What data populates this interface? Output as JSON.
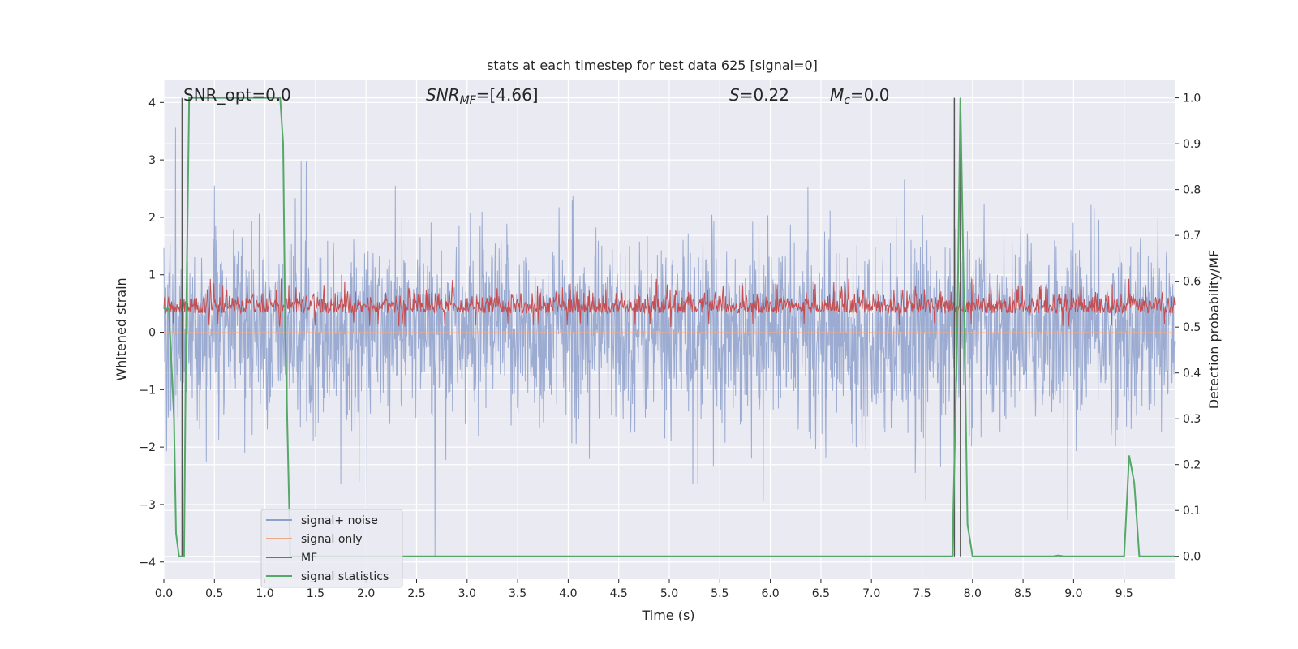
{
  "chart_data": {
    "type": "line",
    "title": "stats at each timestep for test data 625 [signal=0]",
    "xlabel": "Time (s)",
    "ylabel": "Whitened strain",
    "ylabel_right": "Detection probability/MF",
    "xlim": [
      0.0,
      10.0
    ],
    "ylim": [
      -4.3,
      4.4
    ],
    "ylim_right": [
      -0.05,
      1.04
    ],
    "x_ticks": [
      0.0,
      0.5,
      1.0,
      1.5,
      2.0,
      2.5,
      3.0,
      3.5,
      4.0,
      4.5,
      5.0,
      5.5,
      6.0,
      6.5,
      7.0,
      7.5,
      8.0,
      8.5,
      9.0,
      9.5
    ],
    "x_tick_labels": [
      "0.0",
      "0.5",
      "1.0",
      "1.5",
      "2.0",
      "2.5",
      "3.0",
      "3.5",
      "4.0",
      "4.5",
      "5.0",
      "5.5",
      "6.0",
      "6.5",
      "7.0",
      "7.5",
      "8.0",
      "8.5",
      "9.0",
      "9.5"
    ],
    "y_ticks": [
      -4,
      -3,
      -2,
      -1,
      0,
      1,
      2,
      3,
      4
    ],
    "y_tick_labels": [
      "−4",
      "−3",
      "−2",
      "−1",
      "0",
      "1",
      "2",
      "3",
      "4"
    ],
    "y_right_ticks": [
      0.0,
      0.1,
      0.2,
      0.3,
      0.4,
      0.5,
      0.6,
      0.7,
      0.8,
      0.9,
      1.0
    ],
    "y_right_tick_labels": [
      "0.0",
      "0.1",
      "0.2",
      "0.3",
      "0.4",
      "0.5",
      "0.6",
      "0.7",
      "0.8",
      "0.9",
      "1.0"
    ],
    "grid": true,
    "legend_position": "lower-left",
    "annotations": {
      "snr_opt": "SNR_opt=0.0",
      "snr_mf_prefix": "SNR",
      "snr_mf_sub": "MF",
      "snr_mf_value": "=[4.66]",
      "s_prefix": "S",
      "s_value": "=0.22",
      "mc_prefix": "M",
      "mc_sub": "c",
      "mc_value": "=0.0"
    },
    "series": [
      {
        "name": "signal+ noise",
        "color": "#8da0cb",
        "style": "noise",
        "amplitude_typical": 1.6,
        "amplitude_max": 4.0
      },
      {
        "name": "signal only",
        "color": "#f0a988",
        "style": "flat",
        "values": [
          0
        ]
      },
      {
        "name": "MF",
        "color": "#c44e52",
        "style": "noise-positive",
        "axis": "right",
        "band": [
          0.5,
          0.6
        ]
      },
      {
        "name": "signal statistics",
        "color": "#55a868",
        "axis": "right",
        "x": [
          0.0,
          0.05,
          0.1,
          0.12,
          0.15,
          0.2,
          0.22,
          0.25,
          0.3,
          1.15,
          1.18,
          1.2,
          1.25,
          1.3,
          7.78,
          7.8,
          7.85,
          7.88,
          7.92,
          7.95,
          8.0,
          8.8,
          8.85,
          8.9,
          9.5,
          9.55,
          9.6,
          9.65,
          9.7,
          10.0
        ],
        "y": [
          0.54,
          0.54,
          0.3,
          0.05,
          0.0,
          0.0,
          0.5,
          1.0,
          1.0,
          1.0,
          0.9,
          0.5,
          0.0,
          0.0,
          0.0,
          0.0,
          0.5,
          1.0,
          0.5,
          0.07,
          0.0,
          0.0,
          0.002,
          0.0,
          0.0,
          0.22,
          0.16,
          0.0,
          0.0,
          0.0
        ]
      }
    ],
    "vertical_markers": [
      0.18,
      7.82,
      7.88
    ]
  }
}
